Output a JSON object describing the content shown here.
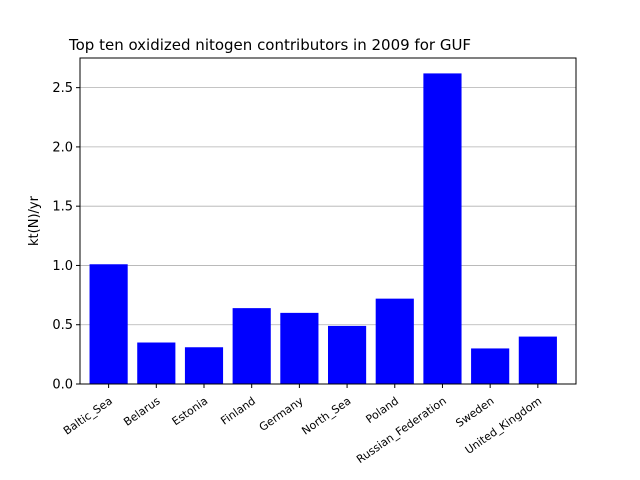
{
  "chart_data": {
    "type": "bar",
    "title": "Top ten oxidized nitogen contributors in 2009 for  GUF",
    "xlabel": "",
    "ylabel": "kt(N)/yr",
    "categories": [
      "Baltic_Sea",
      "Belarus",
      "Estonia",
      "Finland",
      "Germany",
      "North_Sea",
      "Poland",
      "Russian_Federation",
      "Sweden",
      "United_Kingdom"
    ],
    "values": [
      1.01,
      0.35,
      0.31,
      0.64,
      0.6,
      0.49,
      0.72,
      2.62,
      0.3,
      0.4
    ],
    "ylim": [
      0,
      2.75
    ],
    "yticks": [
      "0.0",
      "0.5",
      "1.0",
      "1.5",
      "2.0",
      "2.5"
    ],
    "bar_color": "#0000ff",
    "grid": "horizontal",
    "legend": "none"
  }
}
